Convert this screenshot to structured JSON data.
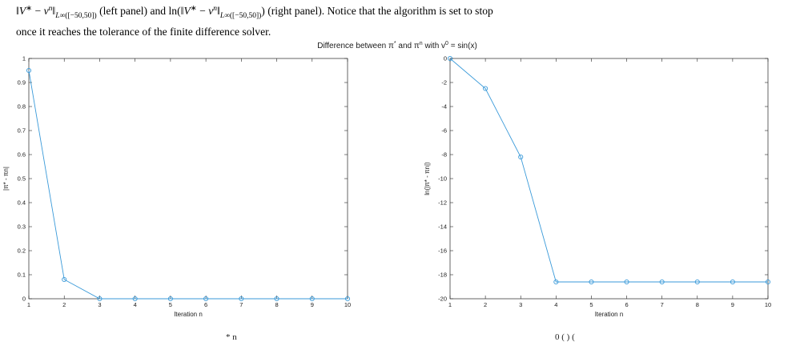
{
  "intro": {
    "line1_left": "(left panel) and ln(",
    "line1_right": ") (right panel). Notice that the algorithm is set to stop",
    "line2": "once it reaches the tolerance of the finite difference solver."
  },
  "figure": {
    "title": "Difference between π* and πn with v0 = sin(x)",
    "title_parts": {
      "prefix": "Difference between ",
      "pi": "π",
      "star": "*",
      "and": " and ",
      "n": "n",
      "with": " with v",
      "zero": "0",
      "eq": " = sin(x)"
    }
  },
  "footer_fragments": [
    "* n",
    "0 (   )    ("
  ],
  "colors": {
    "line": "#3a9ad9",
    "axis": "#262626",
    "text": "#1a1a1a"
  },
  "chart_data": [
    {
      "type": "line",
      "panel": "left",
      "x": [
        1,
        2,
        3,
        4,
        5,
        6,
        7,
        8,
        9,
        10
      ],
      "y": [
        0.95,
        0.08,
        0.0,
        0.0,
        0.0,
        0.0,
        0.0,
        0.0,
        0.0,
        0.0
      ],
      "xlabel": "Iteration n",
      "ylabel": "|π* - πn|",
      "xlim": [
        1,
        10
      ],
      "ylim": [
        0,
        1
      ],
      "xticks": [
        1,
        2,
        3,
        4,
        5,
        6,
        7,
        8,
        9,
        10
      ],
      "yticks": [
        0,
        0.1,
        0.2,
        0.3,
        0.4,
        0.5,
        0.6,
        0.7,
        0.8,
        0.9,
        1
      ],
      "ytick_labels": [
        "0",
        "0.1",
        "0.2",
        "0.3",
        "0.4",
        "0.5",
        "0.6",
        "0.7",
        "0.8",
        "0.9",
        "1"
      ],
      "marker": "circle",
      "grid": false
    },
    {
      "type": "line",
      "panel": "right",
      "x": [
        1,
        2,
        3,
        4,
        5,
        6,
        7,
        8,
        9,
        10
      ],
      "y": [
        0,
        -2.5,
        -8.2,
        -18.6,
        -18.6,
        -18.6,
        -18.6,
        -18.6,
        -18.6,
        -18.6
      ],
      "xlabel": "Iteration n",
      "ylabel": "ln(|π* - πn|)",
      "xlim": [
        1,
        10
      ],
      "ylim": [
        -20,
        0
      ],
      "xticks": [
        1,
        2,
        3,
        4,
        5,
        6,
        7,
        8,
        9,
        10
      ],
      "yticks": [
        0,
        -2,
        -4,
        -6,
        -8,
        -10,
        -12,
        -14,
        -16,
        -18,
        -20
      ],
      "ytick_labels": [
        "0",
        "-2",
        "-4",
        "-6",
        "-8",
        "-10",
        "-12",
        "-14",
        "-16",
        "-18",
        "-20"
      ],
      "marker": "circle",
      "grid": false
    }
  ]
}
